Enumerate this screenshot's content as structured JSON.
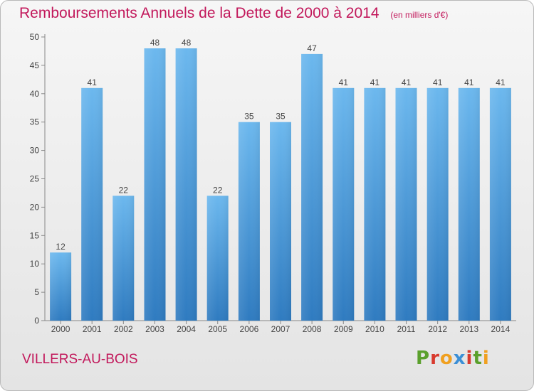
{
  "header": {
    "title": "Remboursements Annuels de la Dette de 2000 à 2014",
    "subtitle": "(en milliers d'€)"
  },
  "footer": {
    "town": "VILLERS-AU-BOIS",
    "brand": "Proxiti"
  },
  "colors": {
    "title": "#c2185b",
    "bar_light": "#6cb8ee",
    "bar_dark": "#2f7bc0",
    "brand_letters": [
      "#5aa02c",
      "#d83a2e",
      "#f0a020",
      "#3b8fd6",
      "#d83a2e",
      "#5aa02c",
      "#f0a020"
    ]
  },
  "chart_data": {
    "type": "bar",
    "categories": [
      "2000",
      "2001",
      "2002",
      "2003",
      "2004",
      "2005",
      "2006",
      "2007",
      "2008",
      "2009",
      "2010",
      "2011",
      "2012",
      "2013",
      "2014"
    ],
    "values": [
      12,
      41,
      22,
      48,
      48,
      22,
      35,
      35,
      47,
      41,
      41,
      41,
      41,
      41,
      41
    ],
    "title": "Remboursements Annuels de la Dette de 2000 à 2014",
    "subtitle": "(en milliers d'€)",
    "xlabel": "",
    "ylabel": "",
    "ylim": [
      0,
      50
    ],
    "yticks": [
      0,
      5,
      10,
      15,
      20,
      25,
      30,
      35,
      40,
      45,
      50
    ],
    "grid": false,
    "legend": "none"
  }
}
